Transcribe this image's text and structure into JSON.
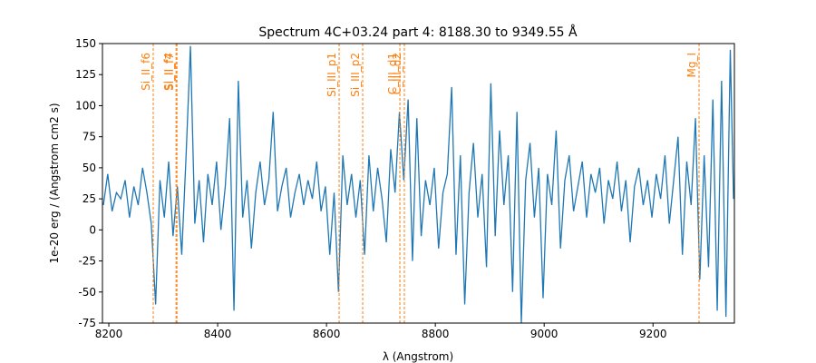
{
  "chart_data": {
    "type": "line",
    "title": "Spectrum 4C+03.24 part 4: 8188.30 to 9349.55 Å",
    "xlabel": "λ (Angstrom)",
    "ylabel": "1e-20 erg / (Angstrom cm2 s)",
    "xlim": [
      8188.3,
      9349.55
    ],
    "ylim": [
      -75,
      150
    ],
    "xticks": [
      8200,
      8400,
      8600,
      8800,
      9000,
      9200
    ],
    "yticks": [
      -75,
      -50,
      -25,
      0,
      25,
      50,
      75,
      100,
      125,
      150
    ],
    "x": [
      8190,
      8198,
      8206,
      8214,
      8222,
      8230,
      8238,
      8246,
      8254,
      8262,
      8270,
      8278,
      8286,
      8294,
      8302,
      8310,
      8318,
      8326,
      8334,
      8342,
      8350,
      8358,
      8366,
      8374,
      8382,
      8390,
      8398,
      8406,
      8414,
      8422,
      8430,
      8438,
      8446,
      8454,
      8462,
      8470,
      8478,
      8486,
      8494,
      8502,
      8510,
      8518,
      8526,
      8534,
      8542,
      8550,
      8558,
      8566,
      8574,
      8582,
      8590,
      8598,
      8606,
      8614,
      8622,
      8630,
      8638,
      8646,
      8654,
      8662,
      8670,
      8678,
      8686,
      8694,
      8702,
      8710,
      8718,
      8726,
      8734,
      8742,
      8750,
      8758,
      8766,
      8774,
      8782,
      8790,
      8798,
      8806,
      8814,
      8822,
      8830,
      8838,
      8846,
      8854,
      8862,
      8870,
      8878,
      8886,
      8894,
      8902,
      8910,
      8918,
      8926,
      8934,
      8942,
      8950,
      8958,
      8966,
      8974,
      8982,
      8990,
      8998,
      9006,
      9014,
      9022,
      9030,
      9038,
      9046,
      9054,
      9062,
      9070,
      9078,
      9086,
      9094,
      9102,
      9110,
      9118,
      9126,
      9134,
      9142,
      9150,
      9158,
      9166,
      9174,
      9182,
      9190,
      9198,
      9206,
      9214,
      9222,
      9230,
      9238,
      9246,
      9254,
      9262,
      9270,
      9278,
      9286,
      9294,
      9302,
      9310,
      9318,
      9326,
      9334,
      9342,
      9348
    ],
    "series": [
      {
        "color": "#1f77b4",
        "values": [
          20,
          45,
          15,
          30,
          25,
          40,
          10,
          35,
          20,
          50,
          30,
          5,
          -60,
          40,
          10,
          55,
          -5,
          35,
          -20,
          60,
          148,
          5,
          40,
          -10,
          45,
          20,
          55,
          0,
          35,
          90,
          -65,
          120,
          10,
          40,
          -15,
          30,
          55,
          20,
          40,
          95,
          15,
          35,
          50,
          10,
          30,
          45,
          20,
          40,
          25,
          55,
          15,
          35,
          -20,
          30,
          -50,
          60,
          20,
          45,
          10,
          40,
          -20,
          60,
          15,
          50,
          25,
          -10,
          65,
          30,
          95,
          40,
          105,
          -25,
          90,
          -5,
          40,
          20,
          50,
          -15,
          30,
          45,
          115,
          -20,
          60,
          -60,
          30,
          70,
          10,
          45,
          -30,
          118,
          -5,
          80,
          20,
          60,
          -50,
          95,
          -75,
          40,
          70,
          10,
          50,
          -55,
          45,
          20,
          80,
          -15,
          40,
          60,
          15,
          35,
          55,
          10,
          45,
          30,
          50,
          5,
          40,
          25,
          55,
          15,
          40,
          -10,
          35,
          50,
          20,
          40,
          10,
          45,
          25,
          60,
          5,
          40,
          75,
          -20,
          55,
          20,
          90,
          -40,
          60,
          -30,
          105,
          -65,
          120,
          -70,
          145,
          25
        ]
      }
    ],
    "lines": [
      {
        "x": 8281.6,
        "label": "Si_II_f6"
      },
      {
        "x": 8323.5,
        "label": "Si_II_f4"
      },
      {
        "x": 8325.2,
        "label": "Si_II_f7"
      },
      {
        "x": 8623.2,
        "label": "Si_III_p1"
      },
      {
        "x": 8666.5,
        "label": "Si_III_p2"
      },
      {
        "x": 8734.8,
        "label": "C_III_d1"
      },
      {
        "x": 8743.1,
        "label": "C_III_d2"
      },
      {
        "x": 9284.6,
        "label": "Mg_I"
      }
    ],
    "lines_color": "#ff7f0e"
  }
}
